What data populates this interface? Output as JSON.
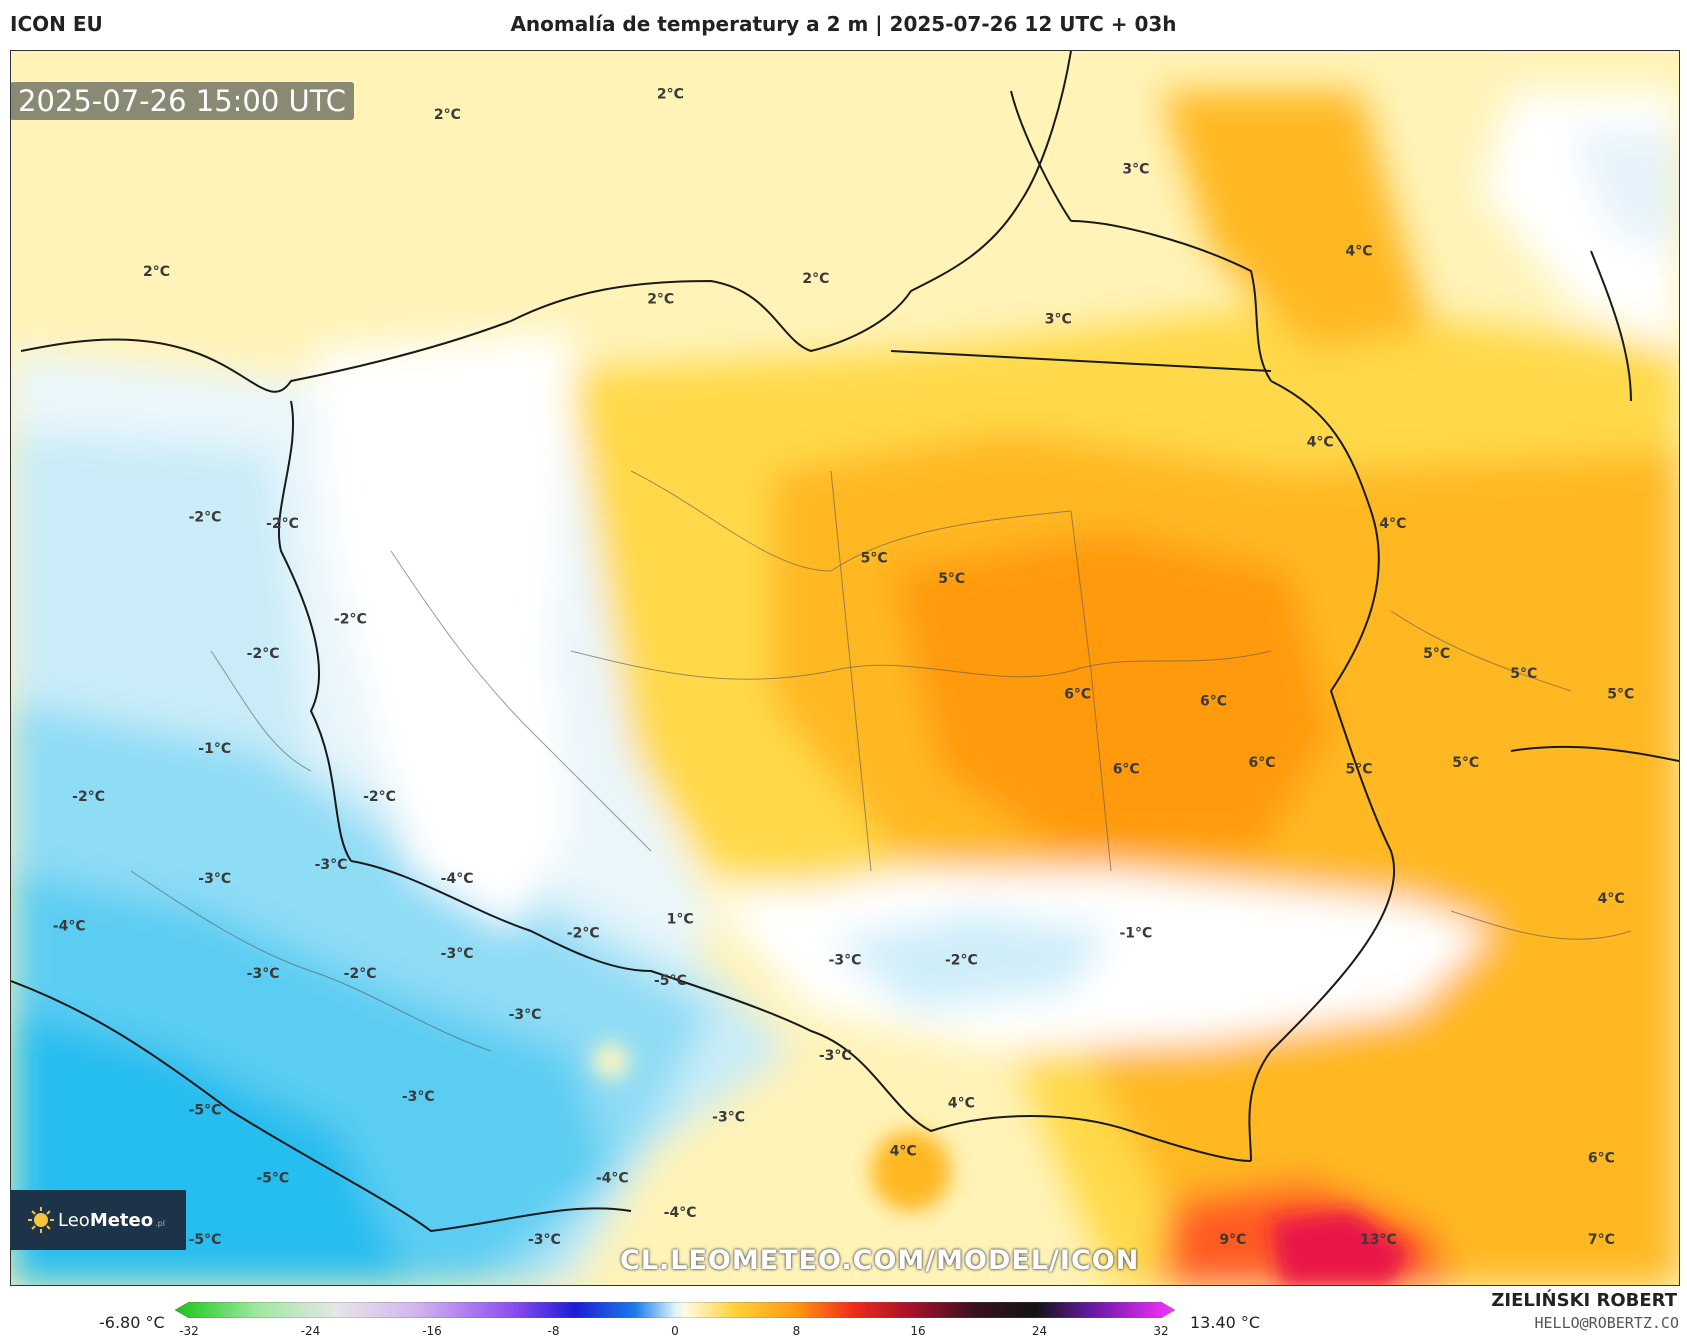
{
  "header": {
    "model": "ICON EU",
    "title": "Anomalía de temperatury a 2 m | 2025-07-26 12 UTC + 03h"
  },
  "map": {
    "timestamp": "2025-07-26 15:00 UTC",
    "watermark": "CL.LEOMETEO.COM/MODEL/ICON",
    "labels": [
      {
        "text": "2°C",
        "lon": 16.2,
        "lat": 56.6
      },
      {
        "text": "2°C",
        "lon": 13.9,
        "lat": 56.45
      },
      {
        "text": "2°C",
        "lon": 10.9,
        "lat": 55.3
      },
      {
        "text": "2°C",
        "lon": 16.1,
        "lat": 55.1
      },
      {
        "text": "2°C",
        "lon": 17.7,
        "lat": 55.25
      },
      {
        "text": "3°C",
        "lon": 21.0,
        "lat": 56.05
      },
      {
        "text": "3°C",
        "lon": 20.2,
        "lat": 54.95
      },
      {
        "text": "4°C",
        "lon": 23.3,
        "lat": 55.45
      },
      {
        "text": "4°C",
        "lon": 22.9,
        "lat": 54.05
      },
      {
        "text": "4°C",
        "lon": 23.65,
        "lat": 53.45
      },
      {
        "text": "5°C",
        "lon": 18.3,
        "lat": 53.2
      },
      {
        "text": "5°C",
        "lon": 19.1,
        "lat": 53.05
      },
      {
        "text": "5°C",
        "lon": 24.1,
        "lat": 52.5
      },
      {
        "text": "5°C",
        "lon": 25.0,
        "lat": 52.35
      },
      {
        "text": "5°C",
        "lon": 26.0,
        "lat": 52.2
      },
      {
        "text": "6°C",
        "lon": 20.4,
        "lat": 52.2
      },
      {
        "text": "6°C",
        "lon": 21.8,
        "lat": 52.15
      },
      {
        "text": "6°C",
        "lon": 20.9,
        "lat": 51.65
      },
      {
        "text": "6°C",
        "lon": 22.3,
        "lat": 51.7
      },
      {
        "text": "5°C",
        "lon": 23.3,
        "lat": 51.65
      },
      {
        "text": "5°C",
        "lon": 24.4,
        "lat": 51.7
      },
      {
        "text": "4°C",
        "lon": 25.9,
        "lat": 50.7
      },
      {
        "text": "-2°C",
        "lon": 11.4,
        "lat": 53.5
      },
      {
        "text": "-2°C",
        "lon": 12.2,
        "lat": 53.45
      },
      {
        "text": "-2°C",
        "lon": 12.9,
        "lat": 52.75
      },
      {
        "text": "-2°C",
        "lon": 12.0,
        "lat": 52.5
      },
      {
        "text": "-1°C",
        "lon": 11.5,
        "lat": 51.8
      },
      {
        "text": "-2°C",
        "lon": 10.2,
        "lat": 51.45
      },
      {
        "text": "-2°C",
        "lon": 13.2,
        "lat": 51.45
      },
      {
        "text": "-3°C",
        "lon": 12.7,
        "lat": 50.95
      },
      {
        "text": "-3°C",
        "lon": 11.5,
        "lat": 50.85
      },
      {
        "text": "-4°C",
        "lon": 14.0,
        "lat": 50.85
      },
      {
        "text": "-4°C",
        "lon": 10.0,
        "lat": 50.5
      },
      {
        "text": "1°C",
        "lon": 16.3,
        "lat": 50.55
      },
      {
        "text": "-1°C",
        "lon": 21.0,
        "lat": 50.45
      },
      {
        "text": "-2°C",
        "lon": 15.3,
        "lat": 50.45
      },
      {
        "text": "-2°C",
        "lon": 19.2,
        "lat": 50.25
      },
      {
        "text": "-3°C",
        "lon": 14.0,
        "lat": 50.3
      },
      {
        "text": "-3°C",
        "lon": 18.0,
        "lat": 50.25
      },
      {
        "text": "-3°C",
        "lon": 12.0,
        "lat": 50.15
      },
      {
        "text": "-2°C",
        "lon": 13.0,
        "lat": 50.15
      },
      {
        "text": "-5°C",
        "lon": 16.2,
        "lat": 50.1
      },
      {
        "text": "-3°C",
        "lon": 14.7,
        "lat": 49.85
      },
      {
        "text": "-3°C",
        "lon": 17.9,
        "lat": 49.55
      },
      {
        "text": "4°C",
        "lon": 19.2,
        "lat": 49.2
      },
      {
        "text": "-3°C",
        "lon": 13.6,
        "lat": 49.25
      },
      {
        "text": "-5°C",
        "lon": 11.4,
        "lat": 49.15
      },
      {
        "text": "-3°C",
        "lon": 16.8,
        "lat": 49.1
      },
      {
        "text": "4°C",
        "lon": 18.6,
        "lat": 48.85
      },
      {
        "text": "-5°C",
        "lon": 12.1,
        "lat": 48.65
      },
      {
        "text": "-4°C",
        "lon": 15.6,
        "lat": 48.65
      },
      {
        "text": "-4°C",
        "lon": 16.3,
        "lat": 48.4
      },
      {
        "text": "-5°C",
        "lon": 11.4,
        "lat": 48.2
      },
      {
        "text": "-3°C",
        "lon": 14.9,
        "lat": 48.2
      },
      {
        "text": "9°C",
        "lon": 22.0,
        "lat": 48.2
      },
      {
        "text": "13°C",
        "lon": 23.5,
        "lat": 48.2
      },
      {
        "text": "6°C",
        "lon": 25.8,
        "lat": 48.8
      },
      {
        "text": "7°C",
        "lon": 25.8,
        "lat": 48.2
      }
    ]
  },
  "colorbar": {
    "min_label": "-6.80 °C",
    "max_label": "13.40 °C",
    "ticks": [
      "-32",
      "-24",
      "-16",
      "-8",
      "0",
      "8",
      "16",
      "24",
      "32"
    ],
    "range": [
      -32,
      32
    ]
  },
  "branding": {
    "logo_name_plain": "Leo",
    "logo_name_bold": "Meteo",
    "logo_suffix": ".pl",
    "author": "ZIELIŃSKI ROBERT",
    "email": "HELLO@ROBERTZ.CO"
  }
}
